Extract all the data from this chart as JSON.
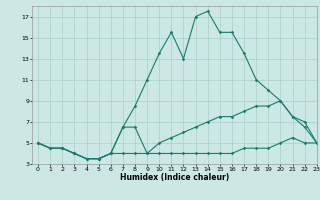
{
  "xlabel": "Humidex (Indice chaleur)",
  "background_color": "#cce8e4",
  "grid_color": "#aacfca",
  "line_color": "#1a7a6e",
  "xlim": [
    -0.5,
    23
  ],
  "ylim": [
    3,
    18
  ],
  "xticks": [
    0,
    1,
    2,
    3,
    4,
    5,
    6,
    7,
    8,
    9,
    10,
    11,
    12,
    13,
    14,
    15,
    16,
    17,
    18,
    19,
    20,
    21,
    22,
    23
  ],
  "yticks": [
    3,
    5,
    7,
    9,
    11,
    13,
    15,
    17
  ],
  "line1_x": [
    0,
    1,
    2,
    3,
    4,
    5,
    6,
    7,
    8,
    9,
    10,
    11,
    12,
    13,
    14,
    15,
    16,
    17,
    18,
    19,
    20,
    21,
    22,
    23
  ],
  "line1_y": [
    5,
    4.5,
    4.5,
    4,
    3.5,
    3.5,
    4,
    4,
    4,
    4,
    4,
    4,
    4,
    4,
    4,
    4,
    4,
    4.5,
    4.5,
    4.5,
    5,
    5.5,
    5,
    5
  ],
  "line2_x": [
    0,
    1,
    2,
    3,
    4,
    5,
    6,
    7,
    8,
    9,
    10,
    11,
    12,
    13,
    14,
    15,
    16,
    17,
    18,
    19,
    20,
    21,
    22,
    23
  ],
  "line2_y": [
    5,
    4.5,
    4.5,
    4,
    3.5,
    3.5,
    4,
    6.5,
    6.5,
    4,
    5,
    5.5,
    6,
    6.5,
    7,
    7.5,
    7.5,
    8,
    8.5,
    8.5,
    9,
    7.5,
    6.5,
    5
  ],
  "line3_x": [
    0,
    1,
    2,
    3,
    4,
    5,
    6,
    7,
    8,
    9,
    10,
    11,
    12,
    13,
    14,
    15,
    16,
    17,
    18,
    19,
    20,
    21,
    22,
    23
  ],
  "line3_y": [
    5,
    4.5,
    4.5,
    4,
    3.5,
    3.5,
    4,
    6.5,
    8.5,
    11,
    13.5,
    15.5,
    13,
    17,
    17.5,
    15.5,
    15.5,
    13.5,
    11,
    10,
    9,
    7.5,
    7,
    5
  ]
}
